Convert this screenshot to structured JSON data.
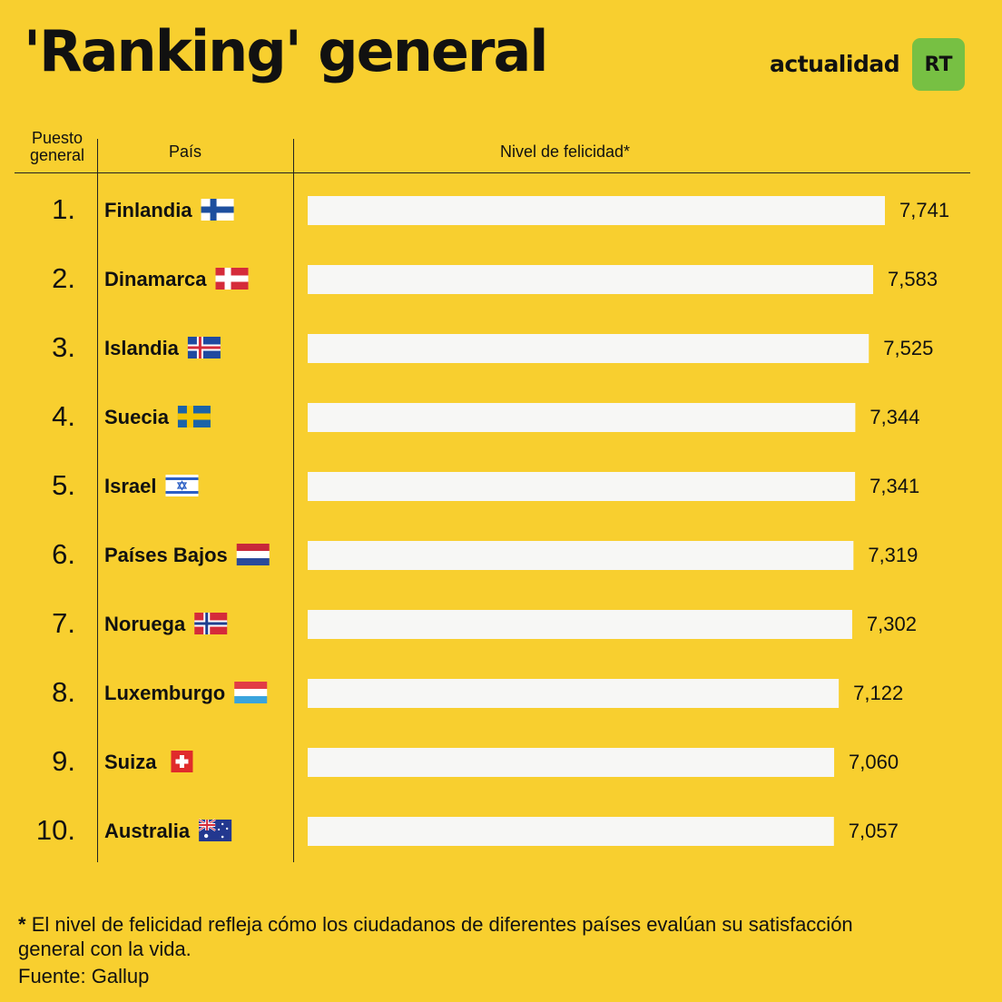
{
  "header": {
    "title": "'Ranking' general",
    "brand_text": "actualidad",
    "brand_badge": "RT"
  },
  "columns": {
    "rank": "Puesto general",
    "country": "País",
    "level": "Nivel de felicidad*"
  },
  "footnote": {
    "star": "*",
    "text": "El nivel de felicidad refleja cómo los ciudadanos de diferentes países evalúan su satisfacción general con la vida.",
    "source": "Fuente: Gallup"
  },
  "colors": {
    "background": "#f8cf2f",
    "bar": "#f7f7f5",
    "badge": "#77c043",
    "text": "#111111"
  },
  "chart_data": {
    "type": "bar",
    "orientation": "horizontal",
    "categories": [
      "Finlandia",
      "Dinamarca",
      "Islandia",
      "Suecia",
      "Israel",
      "Países Bajos",
      "Noruega",
      "Luxemburgo",
      "Suiza",
      "Australia"
    ],
    "ranks": [
      "1.",
      "2.",
      "3.",
      "4.",
      "5.",
      "6.",
      "7.",
      "8.",
      "9.",
      "10."
    ],
    "flag_icons": [
      "finland-flag-icon",
      "denmark-flag-icon",
      "iceland-flag-icon",
      "sweden-flag-icon",
      "israel-flag-icon",
      "netherlands-flag-icon",
      "norway-flag-icon",
      "luxembourg-flag-icon",
      "switzerland-flag-icon",
      "australia-flag-icon"
    ],
    "values": [
      7.741,
      7.583,
      7.525,
      7.344,
      7.341,
      7.319,
      7.302,
      7.122,
      7.06,
      7.057
    ],
    "value_labels": [
      "7,741",
      "7,583",
      "7,525",
      "7,344",
      "7,341",
      "7,319",
      "7,302",
      "7,122",
      "7,060",
      "7,057"
    ],
    "xlim": [
      0,
      7.741
    ],
    "grid": false,
    "legend": "none"
  }
}
